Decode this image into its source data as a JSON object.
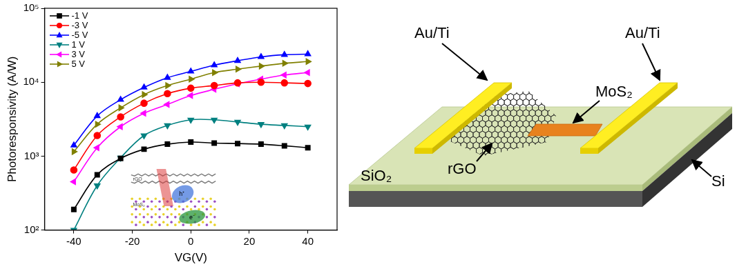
{
  "chart_data": {
    "type": "line",
    "x_label": "VG(V)",
    "y_label": "Photoresponsivity (A/W)",
    "x": [
      -40,
      -32,
      -24,
      -16,
      -8,
      0,
      8,
      16,
      24,
      32,
      40
    ],
    "series": [
      {
        "name": "-1 V",
        "color": "#000000",
        "marker": "square",
        "line_style": "solid",
        "values": [
          190,
          560,
          930,
          1240,
          1450,
          1550,
          1500,
          1480,
          1450,
          1380,
          1300
        ]
      },
      {
        "name": "-3 V",
        "color": "#ff0000",
        "marker": "circle",
        "line_style": "solid",
        "values": [
          650,
          1900,
          3400,
          5200,
          7000,
          8300,
          9000,
          9800,
          10000,
          9800,
          9600
        ]
      },
      {
        "name": "-5 V",
        "color": "#0000ff",
        "marker": "triangle-up",
        "line_style": "solid",
        "values": [
          1400,
          3500,
          5800,
          8500,
          11500,
          14000,
          17000,
          19500,
          22000,
          23500,
          24000
        ]
      },
      {
        "name": "1 V",
        "color": "#008080",
        "marker": "triangle-down",
        "line_style": "solid",
        "values": [
          100,
          400,
          950,
          1900,
          2600,
          3100,
          3100,
          2900,
          2700,
          2600,
          2500
        ]
      },
      {
        "name": "3 V",
        "color": "#ff00ff",
        "marker": "triangle-left",
        "line_style": "solid",
        "values": [
          450,
          1300,
          2500,
          3800,
          5000,
          6600,
          8000,
          9500,
          11000,
          12500,
          13500
        ]
      },
      {
        "name": "5 V",
        "color": "#808000",
        "marker": "triangle-right",
        "line_style": "solid",
        "values": [
          1150,
          2700,
          4500,
          6800,
          9000,
          11000,
          13500,
          15000,
          16500,
          18000,
          19000
        ]
      }
    ],
    "xlim": [
      -50,
      50
    ],
    "xticks": [
      -40,
      -20,
      0,
      20,
      40
    ],
    "ylim": [
      100,
      100000
    ],
    "yticks": [
      {
        "value": 100,
        "label": "10²"
      },
      {
        "value": 1000,
        "label": "10³"
      },
      {
        "value": 10000,
        "label": "10⁴"
      },
      {
        "value": 100000,
        "label": "10⁵"
      }
    ],
    "log": "y",
    "grid": false,
    "legend": "upper left"
  },
  "inset": {
    "rgo": "rGO",
    "mos2": "MoS₂",
    "hole": "h⁺",
    "electron": "e⁻"
  },
  "diagram": {
    "electrode_left": "Au/Ti",
    "electrode_right": "Au/Ti",
    "mos2": "MoS₂",
    "rgo": "rGO",
    "oxide": "SiO₂",
    "substrate": "Si"
  }
}
